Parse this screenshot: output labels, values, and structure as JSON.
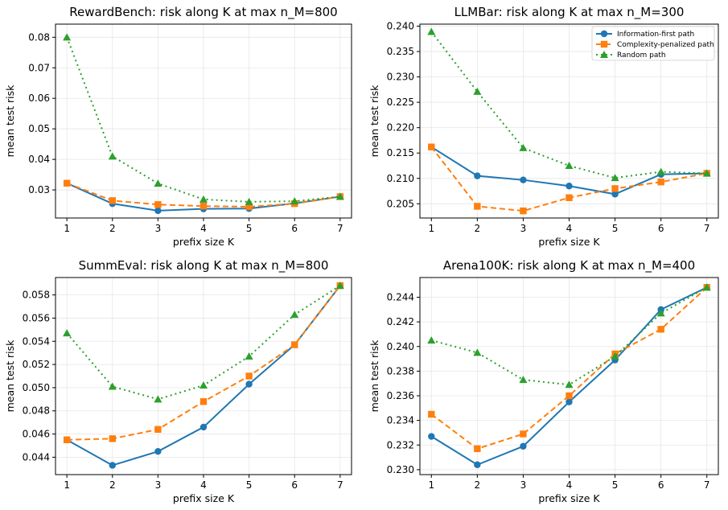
{
  "colors": {
    "info": "#1f77b4",
    "complexity": "#ff7f0e",
    "random": "#2ca02c"
  },
  "legend": {
    "items": [
      "Information-first path",
      "Complexity-penalized path",
      "Random path"
    ]
  },
  "chart_data": [
    {
      "type": "line",
      "title": "RewardBench: risk along K at max n_M=800",
      "xlabel": "prefix size K",
      "ylabel": "mean test risk",
      "x": [
        1,
        2,
        3,
        4,
        5,
        6,
        7
      ],
      "xlim": [
        0.75,
        7.25
      ],
      "ylim": [
        0.0208,
        0.0843
      ],
      "yticks": [
        "0.03",
        "0.04",
        "0.05",
        "0.06",
        "0.07",
        "0.08"
      ],
      "series": [
        {
          "name": "Information-first path",
          "values": [
            0.0322,
            0.0255,
            0.0232,
            0.0238,
            0.0239,
            0.0256,
            0.0278
          ]
        },
        {
          "name": "Complexity-penalized path",
          "values": [
            0.0322,
            0.0265,
            0.0252,
            0.0247,
            0.0245,
            0.0255,
            0.0278
          ]
        },
        {
          "name": "Random path",
          "values": [
            0.08,
            0.041,
            0.0321,
            0.0269,
            0.0261,
            0.0263,
            0.0278
          ]
        }
      ]
    },
    {
      "type": "line",
      "title": "LLMBar: risk along K at max n_M=300",
      "xlabel": "prefix size K",
      "ylabel": "mean test risk",
      "x": [
        1,
        2,
        3,
        4,
        5,
        6,
        7
      ],
      "xlim": [
        0.75,
        7.25
      ],
      "ylim": [
        0.2022,
        0.2404
      ],
      "yticks": [
        "0.205",
        "0.210",
        "0.215",
        "0.220",
        "0.225",
        "0.230",
        "0.235",
        "0.240"
      ],
      "legend_position": "upper-right",
      "series": [
        {
          "name": "Information-first path",
          "values": [
            0.2162,
            0.2105,
            0.2097,
            0.2085,
            0.2069,
            0.2108,
            0.211
          ]
        },
        {
          "name": "Complexity-penalized path",
          "values": [
            0.2162,
            0.2045,
            0.2036,
            0.2062,
            0.208,
            0.2093,
            0.211
          ]
        },
        {
          "name": "Random path",
          "values": [
            0.2389,
            0.2271,
            0.216,
            0.2125,
            0.2101,
            0.2113,
            0.211
          ]
        }
      ]
    },
    {
      "type": "line",
      "title": "SummEval: risk along K at max n_M=800",
      "xlabel": "prefix size K",
      "ylabel": "mean test risk",
      "x": [
        1,
        2,
        3,
        4,
        5,
        6,
        7
      ],
      "xlim": [
        0.75,
        7.25
      ],
      "ylim": [
        0.0425,
        0.0595
      ],
      "yticks": [
        "0.044",
        "0.046",
        "0.048",
        "0.050",
        "0.052",
        "0.054",
        "0.056",
        "0.058"
      ],
      "series": [
        {
          "name": "Information-first path",
          "values": [
            0.0455,
            0.0433,
            0.0445,
            0.0466,
            0.0503,
            0.0537,
            0.0588
          ]
        },
        {
          "name": "Complexity-penalized path",
          "values": [
            0.0455,
            0.0456,
            0.0464,
            0.0488,
            0.051,
            0.0537,
            0.0588
          ]
        },
        {
          "name": "Random path",
          "values": [
            0.0547,
            0.0501,
            0.049,
            0.0502,
            0.0527,
            0.0563,
            0.0588
          ]
        }
      ]
    },
    {
      "type": "line",
      "title": "Arena100K: risk along K at max n_M=400",
      "xlabel": "prefix size K",
      "ylabel": "mean test risk",
      "x": [
        1,
        2,
        3,
        4,
        5,
        6,
        7
      ],
      "xlim": [
        0.75,
        7.25
      ],
      "ylim": [
        0.2296,
        0.2456
      ],
      "yticks": [
        "0.230",
        "0.232",
        "0.234",
        "0.236",
        "0.238",
        "0.240",
        "0.242",
        "0.244"
      ],
      "series": [
        {
          "name": "Information-first path",
          "values": [
            0.2327,
            0.2304,
            0.2319,
            0.2355,
            0.2389,
            0.243,
            0.2448
          ]
        },
        {
          "name": "Complexity-penalized path",
          "values": [
            0.2345,
            0.2317,
            0.2329,
            0.236,
            0.2394,
            0.2414,
            0.2448
          ]
        },
        {
          "name": "Random path",
          "values": [
            0.2405,
            0.2395,
            0.2373,
            0.2369,
            0.2392,
            0.2427,
            0.2448
          ]
        }
      ]
    }
  ]
}
